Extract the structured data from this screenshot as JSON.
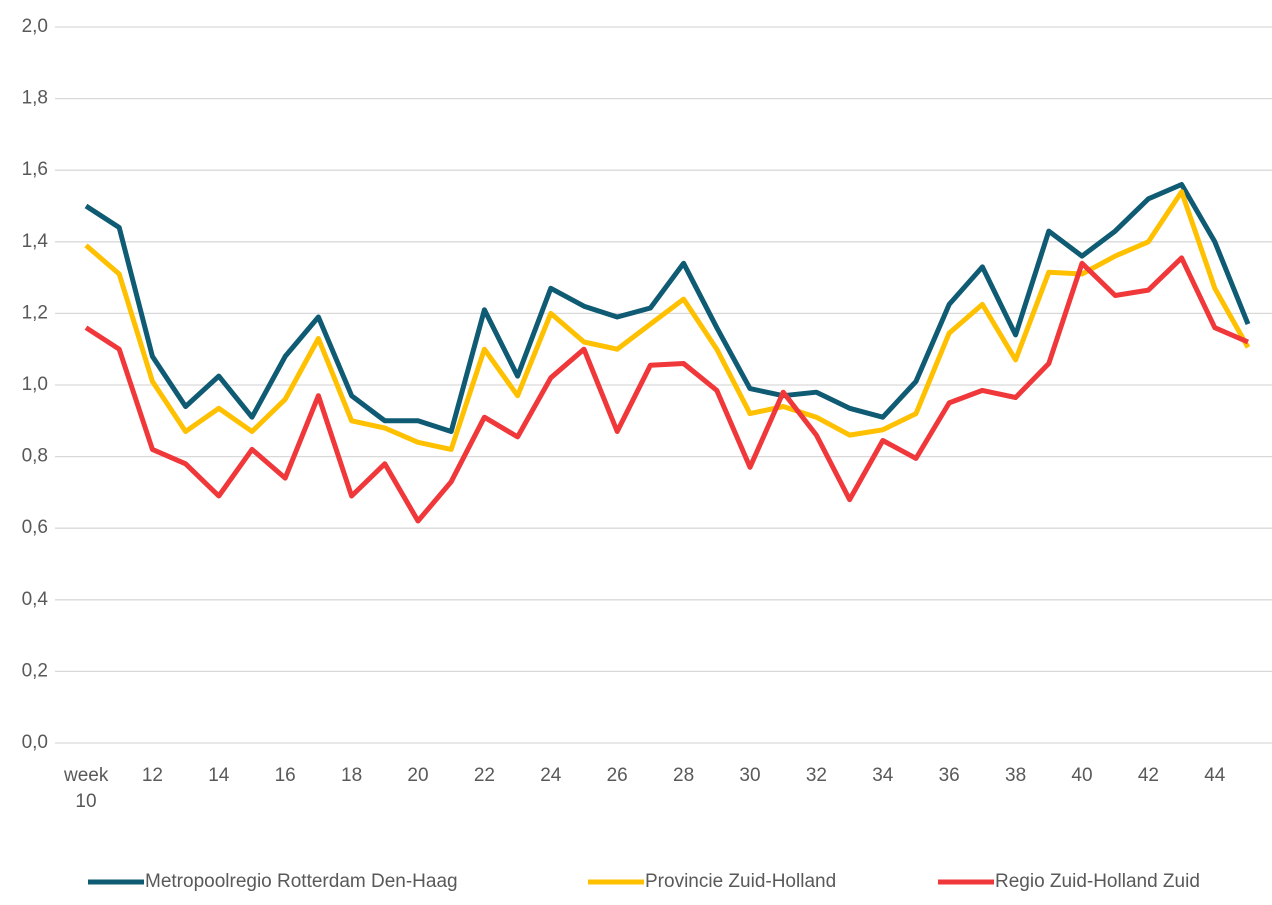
{
  "chart_data": {
    "type": "line",
    "categories": [
      "week 10",
      null,
      "12",
      null,
      "14",
      null,
      "16",
      null,
      "18",
      null,
      "20",
      null,
      "22",
      null,
      "24",
      null,
      "26",
      null,
      "28",
      null,
      "30",
      null,
      "32",
      null,
      "34",
      null,
      "36",
      null,
      "38",
      null,
      "40",
      null,
      "42",
      null,
      "44",
      null
    ],
    "series": [
      {
        "name": "Metropoolregio Rotterdam Den-Haag",
        "color": "#0e5b73",
        "values": [
          1.5,
          1.44,
          1.08,
          0.94,
          1.025,
          0.91,
          1.08,
          1.19,
          0.97,
          0.9,
          0.9,
          0.87,
          1.21,
          1.025,
          1.27,
          1.22,
          1.19,
          1.215,
          1.34,
          1.16,
          0.99,
          0.97,
          0.98,
          0.935,
          0.91,
          1.01,
          1.225,
          1.33,
          1.14,
          1.43,
          1.36,
          1.43,
          1.52,
          1.56,
          1.4,
          1.17
        ]
      },
      {
        "name": "Provincie Zuid-Holland",
        "color": "#ffc000",
        "values": [
          1.39,
          1.31,
          1.01,
          0.87,
          0.935,
          0.87,
          0.96,
          1.13,
          0.9,
          0.88,
          0.84,
          0.82,
          1.1,
          0.97,
          1.2,
          1.12,
          1.1,
          1.17,
          1.24,
          1.1,
          0.92,
          0.94,
          0.91,
          0.86,
          0.875,
          0.92,
          1.145,
          1.225,
          1.07,
          1.315,
          1.31,
          1.36,
          1.4,
          1.54,
          1.27,
          1.105
        ]
      },
      {
        "name": "Regio Zuid-Holland Zuid",
        "color": "#f0373a",
        "values": [
          1.16,
          1.1,
          0.82,
          0.78,
          0.69,
          0.82,
          0.74,
          0.97,
          0.69,
          0.78,
          0.62,
          0.73,
          0.91,
          0.855,
          1.02,
          1.1,
          0.87,
          1.055,
          1.06,
          0.985,
          0.77,
          0.98,
          0.86,
          0.68,
          0.845,
          0.795,
          0.95,
          0.985,
          0.965,
          1.06,
          1.34,
          1.25,
          1.265,
          1.355,
          1.16,
          1.12
        ]
      }
    ],
    "ylim": [
      0,
      2.0
    ],
    "yticks": [
      {
        "value": 0,
        "label": "0,0"
      },
      {
        "value": 0.2,
        "label": "0,2"
      },
      {
        "value": 0.4,
        "label": "0,4"
      },
      {
        "value": 0.6,
        "label": "0,6"
      },
      {
        "value": 0.8,
        "label": "0,8"
      },
      {
        "value": 1.0,
        "label": "1,0"
      },
      {
        "value": 1.2,
        "label": "1,2"
      },
      {
        "value": 1.4,
        "label": "1,4"
      },
      {
        "value": 1.6,
        "label": "1,6"
      },
      {
        "value": 1.8,
        "label": "1,8"
      },
      {
        "value": 2.0,
        "label": "2,0"
      }
    ],
    "grid": true,
    "legend": "bottom"
  }
}
